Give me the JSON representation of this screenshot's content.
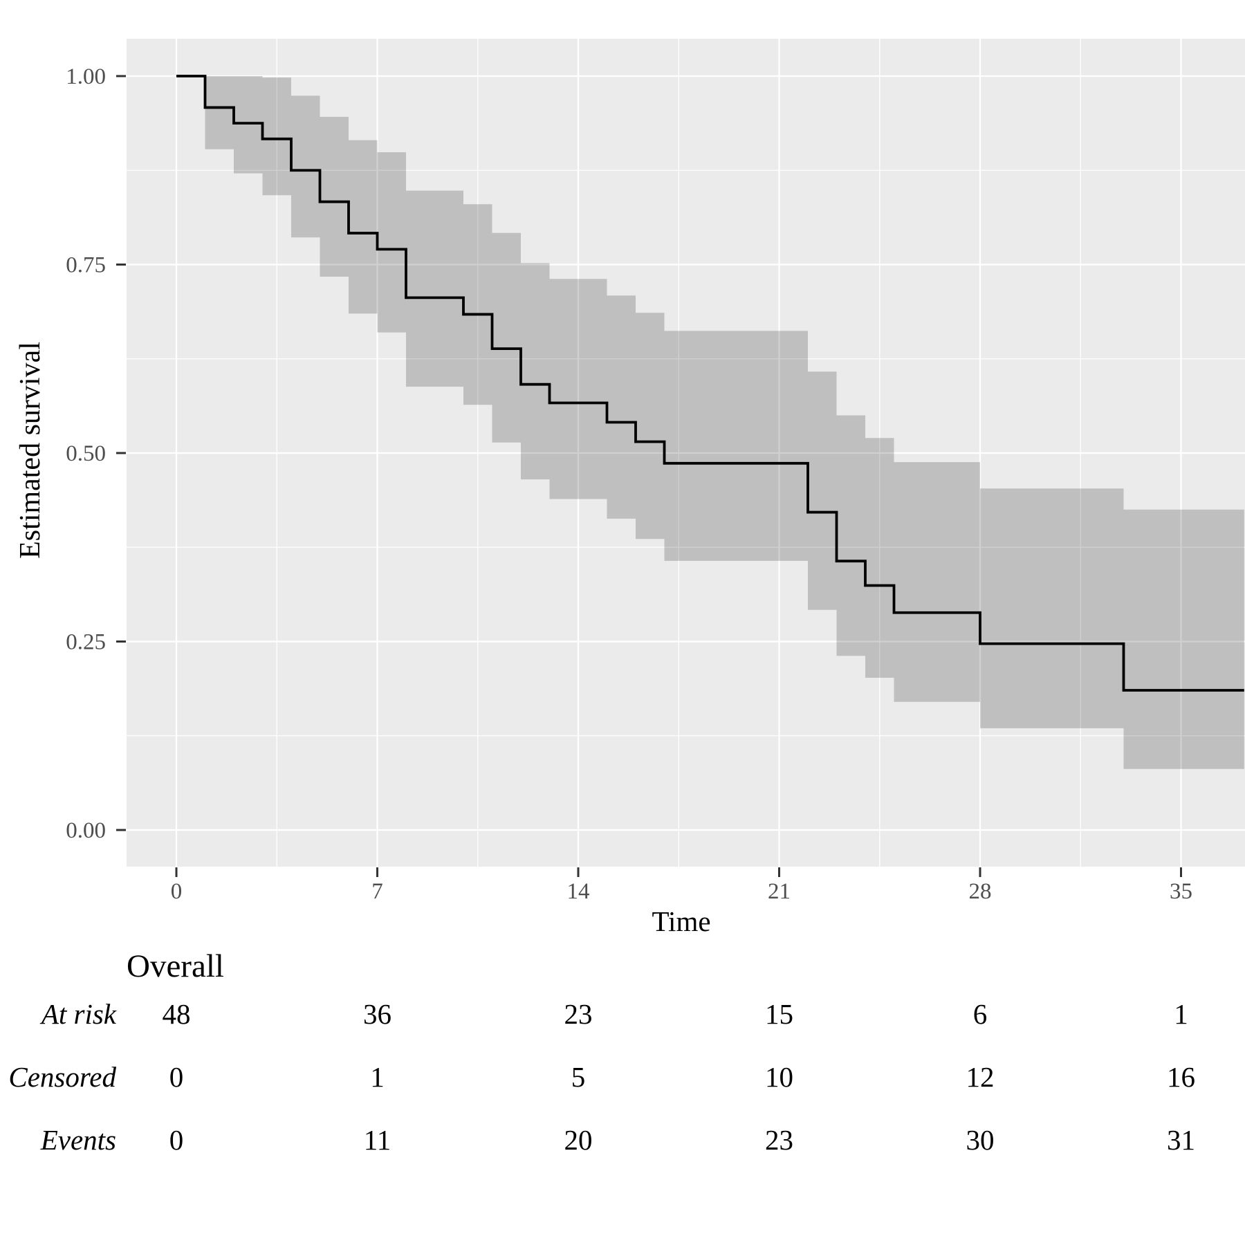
{
  "figure": {
    "kind": "kaplan-meier-survival-plot",
    "colors": {
      "background": "#ffffff",
      "panel_background": "#ebebeb",
      "gridline": "#ffffff",
      "confidence_band": "#000000",
      "confidence_band_alpha": 0.185,
      "survival_line": "#000000",
      "tick_mark": "#333333",
      "tick_label": "#4d4d4d",
      "text": "#000000"
    }
  },
  "x_axis": {
    "title": "Time",
    "tick_values": [
      0,
      7,
      14,
      21,
      28,
      35
    ],
    "tick_labels": [
      "0",
      "7",
      "14",
      "21",
      "28",
      "35"
    ]
  },
  "y_axis": {
    "title": "Estimated survival",
    "tick_values": [
      1.0,
      0.75,
      0.5,
      0.25,
      0.0
    ],
    "tick_labels": [
      "1.00",
      "0.75",
      "0.50",
      "0.25",
      "0.00"
    ]
  },
  "chart_data": {
    "type": "line",
    "subtype": "kaplan-meier-step-with-confidence-band",
    "title": "",
    "xlabel": "Time",
    "ylabel": "Estimated survival",
    "xlim": [
      -1.74,
      37.2
    ],
    "ylim": [
      -0.05,
      1.056
    ],
    "x_ticks": [
      0,
      7,
      14,
      21,
      28,
      35
    ],
    "y_ticks": [
      0.0,
      0.25,
      0.5,
      0.75,
      1.0
    ],
    "x_minor_gridlines": [
      3.5,
      10.5,
      17.5,
      24.5,
      31.5
    ],
    "y_minor_gridlines": [
      0.125,
      0.375,
      0.625,
      0.875
    ],
    "grid": "white major and minor gridlines on grey panel",
    "legend_position": "none",
    "t_end": 37.2,
    "series": [
      {
        "name": "Overall",
        "steps": [
          {
            "t": 0,
            "s": 1.0,
            "lo": 1.0,
            "hi": 1.0
          },
          {
            "t": 1,
            "s": 0.9583,
            "lo": 0.903,
            "hi": 1.0
          },
          {
            "t": 2,
            "s": 0.9375,
            "lo": 0.871,
            "hi": 1.0
          },
          {
            "t": 3,
            "s": 0.9167,
            "lo": 0.842,
            "hi": 0.998
          },
          {
            "t": 4,
            "s": 0.875,
            "lo": 0.786,
            "hi": 0.974
          },
          {
            "t": 5,
            "s": 0.8333,
            "lo": 0.734,
            "hi": 0.946
          },
          {
            "t": 6,
            "s": 0.7917,
            "lo": 0.685,
            "hi": 0.915
          },
          {
            "t": 7,
            "s": 0.7703,
            "lo": 0.66,
            "hi": 0.899
          },
          {
            "t": 8,
            "s": 0.7061,
            "lo": 0.588,
            "hi": 0.848
          },
          {
            "t": 10,
            "s": 0.684,
            "lo": 0.564,
            "hi": 0.83
          },
          {
            "t": 11,
            "s": 0.6384,
            "lo": 0.514,
            "hi": 0.792
          },
          {
            "t": 12,
            "s": 0.5911,
            "lo": 0.465,
            "hi": 0.752
          },
          {
            "t": 13,
            "s": 0.5665,
            "lo": 0.439,
            "hi": 0.731
          },
          {
            "t": 15,
            "s": 0.5408,
            "lo": 0.413,
            "hi": 0.709
          },
          {
            "t": 16,
            "s": 0.515,
            "lo": 0.386,
            "hi": 0.686
          },
          {
            "t": 17,
            "s": 0.4864,
            "lo": 0.357,
            "hi": 0.662
          },
          {
            "t": 22,
            "s": 0.4215,
            "lo": 0.292,
            "hi": 0.608
          },
          {
            "t": 23,
            "s": 0.3567,
            "lo": 0.231,
            "hi": 0.55
          },
          {
            "t": 24,
            "s": 0.3243,
            "lo": 0.202,
            "hi": 0.52
          },
          {
            "t": 25,
            "s": 0.2883,
            "lo": 0.17,
            "hi": 0.488
          },
          {
            "t": 28,
            "s": 0.2471,
            "lo": 0.135,
            "hi": 0.453
          },
          {
            "t": 33,
            "s": 0.1853,
            "lo": 0.081,
            "hi": 0.425
          }
        ]
      }
    ]
  },
  "risk_table": {
    "group_label": "Overall",
    "times": [
      0,
      7,
      14,
      21,
      28,
      35
    ],
    "rows": [
      {
        "label": "At risk",
        "values": [
          "48",
          "36",
          "23",
          "15",
          "6",
          "1"
        ]
      },
      {
        "label": "Censored",
        "values": [
          "0",
          "1",
          "5",
          "10",
          "12",
          "16"
        ]
      },
      {
        "label": "Events",
        "values": [
          "0",
          "11",
          "20",
          "23",
          "30",
          "31"
        ]
      }
    ]
  }
}
